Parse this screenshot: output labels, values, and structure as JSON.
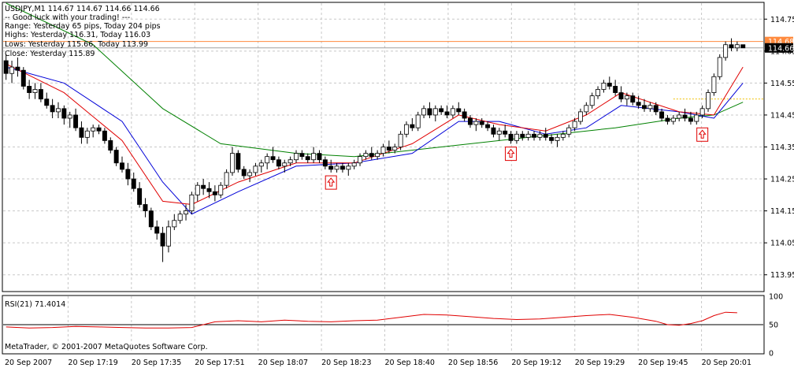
{
  "window": {
    "symbol_line": "USDJPY,M1  114.67 114.67 114.66 114.66",
    "info_lines": [
      "-- Good luck with your trading! ---",
      "Range: Yesterday 65 pips, Today 204 pips",
      "Highs: Yesterday 116.31, Today 116.03",
      "Lows:  Yesterday 115.66, Today 113.99",
      "Close: Yesterday 115.89"
    ],
    "copyright": "MetaTrader, © 2001-2007 MetaQuotes Software Corp."
  },
  "chart_data": [
    {
      "type": "candlestick",
      "title": "USDJPY,M1",
      "ylim": [
        113.9,
        114.8
      ],
      "y_ticks": [
        "114.75",
        "114.65",
        "114.55",
        "114.45",
        "114.35",
        "114.25",
        "114.15",
        "114.05",
        "113.95"
      ],
      "x_tick_labels": [
        "20 Sep 2007",
        "20 Sep 17:19",
        "20 Sep 17:35",
        "20 Sep 17:51",
        "20 Sep 18:07",
        "20 Sep 18:23",
        "20 Sep 18:40",
        "20 Sep 18:56",
        "20 Sep 19:12",
        "20 Sep 19:29",
        "20 Sep 19:45",
        "20 Sep 20:01"
      ],
      "price_labels": {
        "ask": "114.68",
        "bid": "114.66"
      },
      "colors": {
        "ask_line": "#ff8a3d",
        "bid_line": "#a0a0a0",
        "ma_fast": "#e00000",
        "ma_mid": "#0000d8",
        "ma_slow": "#008000",
        "signal": "#e00000",
        "level": "#f0c000"
      },
      "level_line": 114.5,
      "candles": [
        [
          114.62,
          114.64,
          114.56,
          114.58
        ],
        [
          114.58,
          114.62,
          114.55,
          114.6
        ],
        [
          114.6,
          114.63,
          114.57,
          114.59
        ],
        [
          114.59,
          114.6,
          114.53,
          114.54
        ],
        [
          114.54,
          114.56,
          114.5,
          114.52
        ],
        [
          114.52,
          114.55,
          114.5,
          114.53
        ],
        [
          114.53,
          114.55,
          114.49,
          114.5
        ],
        [
          114.5,
          114.52,
          114.47,
          114.48
        ],
        [
          114.48,
          114.5,
          114.44,
          114.46
        ],
        [
          114.46,
          114.49,
          114.44,
          114.47
        ],
        [
          114.47,
          114.48,
          114.42,
          114.44
        ],
        [
          114.44,
          114.46,
          114.41,
          114.45
        ],
        [
          114.45,
          114.47,
          114.4,
          114.41
        ],
        [
          114.41,
          114.43,
          114.36,
          114.38
        ],
        [
          114.38,
          114.41,
          114.36,
          114.4
        ],
        [
          114.4,
          114.42,
          114.38,
          114.41
        ],
        [
          114.41,
          114.42,
          114.39,
          114.4
        ],
        [
          114.4,
          114.41,
          114.36,
          114.37
        ],
        [
          114.37,
          114.38,
          114.33,
          114.34
        ],
        [
          114.34,
          114.35,
          114.29,
          114.3
        ],
        [
          114.3,
          114.32,
          114.27,
          114.28
        ],
        [
          114.28,
          114.3,
          114.23,
          114.25
        ],
        [
          114.25,
          114.27,
          114.21,
          114.22
        ],
        [
          114.22,
          114.24,
          114.16,
          114.17
        ],
        [
          114.17,
          114.19,
          114.13,
          114.15
        ],
        [
          114.15,
          114.16,
          114.09,
          114.1
        ],
        [
          114.1,
          114.12,
          114.06,
          114.08
        ],
        [
          114.08,
          114.1,
          113.99,
          114.04
        ],
        [
          114.04,
          114.12,
          114.02,
          114.1
        ],
        [
          114.1,
          114.14,
          114.09,
          114.12
        ],
        [
          114.12,
          114.15,
          114.11,
          114.14
        ],
        [
          114.14,
          114.17,
          114.12,
          114.15
        ],
        [
          114.15,
          114.21,
          114.14,
          114.2
        ],
        [
          114.2,
          114.24,
          114.18,
          114.23
        ],
        [
          114.23,
          114.25,
          114.2,
          114.22
        ],
        [
          114.22,
          114.24,
          114.19,
          114.21
        ],
        [
          114.21,
          114.23,
          114.18,
          114.2
        ],
        [
          114.2,
          114.24,
          114.19,
          114.23
        ],
        [
          114.23,
          114.28,
          114.22,
          114.27
        ],
        [
          114.27,
          114.35,
          114.26,
          114.33
        ],
        [
          114.33,
          114.34,
          114.27,
          114.28
        ],
        [
          114.28,
          114.29,
          114.25,
          114.26
        ],
        [
          114.26,
          114.28,
          114.24,
          114.27
        ],
        [
          114.27,
          114.3,
          114.26,
          114.29
        ],
        [
          114.29,
          114.31,
          114.27,
          114.3
        ],
        [
          114.3,
          114.33,
          114.28,
          114.32
        ],
        [
          114.32,
          114.35,
          114.3,
          114.31
        ],
        [
          114.31,
          114.32,
          114.28,
          114.29
        ],
        [
          114.29,
          114.31,
          114.27,
          114.3
        ],
        [
          114.3,
          114.32,
          114.29,
          114.31
        ],
        [
          114.31,
          114.34,
          114.3,
          114.33
        ],
        [
          114.33,
          114.34,
          114.31,
          114.32
        ],
        [
          114.32,
          114.33,
          114.3,
          114.31
        ],
        [
          114.31,
          114.35,
          114.3,
          114.33
        ],
        [
          114.33,
          114.34,
          114.3,
          114.31
        ],
        [
          114.31,
          114.32,
          114.28,
          114.29
        ],
        [
          114.29,
          114.31,
          114.27,
          114.28
        ],
        [
          114.28,
          114.3,
          114.27,
          114.29
        ],
        [
          114.29,
          114.3,
          114.27,
          114.28
        ],
        [
          114.28,
          114.3,
          114.26,
          114.29
        ],
        [
          114.29,
          114.31,
          114.28,
          114.3
        ],
        [
          114.3,
          114.33,
          114.29,
          114.32
        ],
        [
          114.32,
          114.34,
          114.31,
          114.33
        ],
        [
          114.33,
          114.35,
          114.31,
          114.32
        ],
        [
          114.32,
          114.34,
          114.31,
          114.33
        ],
        [
          114.33,
          114.36,
          114.32,
          114.35
        ],
        [
          114.35,
          114.37,
          114.33,
          114.34
        ],
        [
          114.34,
          114.36,
          114.33,
          114.35
        ],
        [
          114.35,
          114.4,
          114.34,
          114.39
        ],
        [
          114.39,
          114.43,
          114.38,
          114.42
        ],
        [
          114.42,
          114.44,
          114.4,
          114.41
        ],
        [
          114.41,
          114.46,
          114.4,
          114.45
        ],
        [
          114.45,
          114.48,
          114.44,
          114.47
        ],
        [
          114.47,
          114.49,
          114.44,
          114.45
        ],
        [
          114.45,
          114.48,
          114.43,
          114.47
        ],
        [
          114.47,
          114.48,
          114.45,
          114.46
        ],
        [
          114.46,
          114.48,
          114.44,
          114.45
        ],
        [
          114.45,
          114.48,
          114.44,
          114.47
        ],
        [
          114.47,
          114.49,
          114.45,
          114.46
        ],
        [
          114.46,
          114.47,
          114.43,
          114.44
        ],
        [
          114.44,
          114.45,
          114.41,
          114.42
        ],
        [
          114.42,
          114.44,
          114.4,
          114.43
        ],
        [
          114.43,
          114.44,
          114.41,
          114.42
        ],
        [
          114.42,
          114.43,
          114.4,
          114.41
        ],
        [
          114.41,
          114.42,
          114.38,
          114.39
        ],
        [
          114.39,
          114.41,
          114.37,
          114.4
        ],
        [
          114.4,
          114.42,
          114.38,
          114.39
        ],
        [
          114.39,
          114.4,
          114.36,
          114.37
        ],
        [
          114.37,
          114.4,
          114.36,
          114.39
        ],
        [
          114.39,
          114.4,
          114.37,
          114.38
        ],
        [
          114.38,
          114.4,
          114.37,
          114.39
        ],
        [
          114.39,
          114.4,
          114.37,
          114.38
        ],
        [
          114.38,
          114.4,
          114.37,
          114.39
        ],
        [
          114.39,
          114.41,
          114.37,
          114.38
        ],
        [
          114.38,
          114.39,
          114.36,
          114.37
        ],
        [
          114.37,
          114.39,
          114.35,
          114.38
        ],
        [
          114.38,
          114.4,
          114.37,
          114.39
        ],
        [
          114.39,
          114.42,
          114.38,
          114.41
        ],
        [
          114.41,
          114.44,
          114.4,
          114.43
        ],
        [
          114.43,
          114.47,
          114.42,
          114.46
        ],
        [
          114.46,
          114.49,
          114.45,
          114.48
        ],
        [
          114.48,
          114.52,
          114.47,
          114.51
        ],
        [
          114.51,
          114.54,
          114.5,
          114.53
        ],
        [
          114.53,
          114.56,
          114.52,
          114.55
        ],
        [
          114.55,
          114.57,
          114.53,
          114.54
        ],
        [
          114.54,
          114.56,
          114.51,
          114.52
        ],
        [
          114.52,
          114.54,
          114.49,
          114.5
        ],
        [
          114.5,
          114.52,
          114.48,
          114.51
        ],
        [
          114.51,
          114.52,
          114.48,
          114.49
        ],
        [
          114.49,
          114.51,
          114.47,
          114.48
        ],
        [
          114.48,
          114.5,
          114.46,
          114.47
        ],
        [
          114.47,
          114.49,
          114.46,
          114.48
        ],
        [
          114.48,
          114.49,
          114.45,
          114.46
        ],
        [
          114.46,
          114.47,
          114.43,
          114.44
        ],
        [
          114.44,
          114.45,
          114.42,
          114.43
        ],
        [
          114.43,
          114.45,
          114.42,
          114.44
        ],
        [
          114.44,
          114.46,
          114.43,
          114.45
        ],
        [
          114.45,
          114.47,
          114.43,
          114.44
        ],
        [
          114.44,
          114.46,
          114.42,
          114.43
        ],
        [
          114.43,
          114.46,
          114.42,
          114.45
        ],
        [
          114.45,
          114.48,
          114.44,
          114.47
        ],
        [
          114.47,
          114.53,
          114.46,
          114.52
        ],
        [
          114.52,
          114.58,
          114.51,
          114.57
        ],
        [
          114.57,
          114.64,
          114.56,
          114.63
        ],
        [
          114.63,
          114.68,
          114.62,
          114.67
        ],
        [
          114.67,
          114.69,
          114.65,
          114.66
        ],
        [
          114.66,
          114.68,
          114.65,
          114.67
        ],
        [
          114.67,
          114.67,
          114.66,
          114.66
        ]
      ],
      "ma_fast": [
        [
          0,
          114.61
        ],
        [
          10,
          114.52
        ],
        [
          20,
          114.37
        ],
        [
          27,
          114.18
        ],
        [
          32,
          114.17
        ],
        [
          40,
          114.24
        ],
        [
          50,
          114.3
        ],
        [
          60,
          114.3
        ],
        [
          70,
          114.36
        ],
        [
          78,
          114.45
        ],
        [
          85,
          114.42
        ],
        [
          93,
          114.4
        ],
        [
          100,
          114.45
        ],
        [
          106,
          114.52
        ],
        [
          116,
          114.46
        ],
        [
          122,
          114.45
        ],
        [
          127,
          114.6
        ]
      ],
      "ma_mid": [
        [
          0,
          114.6
        ],
        [
          10,
          114.55
        ],
        [
          20,
          114.43
        ],
        [
          27,
          114.24
        ],
        [
          32,
          114.14
        ],
        [
          40,
          114.21
        ],
        [
          50,
          114.29
        ],
        [
          60,
          114.3
        ],
        [
          70,
          114.33
        ],
        [
          78,
          114.43
        ],
        [
          85,
          114.43
        ],
        [
          93,
          114.39
        ],
        [
          100,
          114.41
        ],
        [
          106,
          114.48
        ],
        [
          116,
          114.46
        ],
        [
          122,
          114.44
        ],
        [
          127,
          114.55
        ]
      ],
      "ma_slow": [
        [
          0,
          114.8
        ],
        [
          15,
          114.67
        ],
        [
          27,
          114.47
        ],
        [
          37,
          114.36
        ],
        [
          50,
          114.33
        ],
        [
          60,
          114.32
        ],
        [
          75,
          114.35
        ],
        [
          90,
          114.38
        ],
        [
          105,
          114.41
        ],
        [
          116,
          114.44
        ],
        [
          122,
          114.45
        ],
        [
          127,
          114.49
        ]
      ],
      "buy_signals": [
        [
          56,
          114.24
        ],
        [
          87,
          114.33
        ],
        [
          120,
          114.39
        ]
      ]
    },
    {
      "type": "line",
      "title": "RSI(21) 71.4014",
      "ylim": [
        0,
        100
      ],
      "y_ticks": [
        "100",
        "50",
        "0"
      ],
      "level_line": 50,
      "series": [
        {
          "values": [
            [
              0,
              46
            ],
            [
              4,
              44
            ],
            [
              8,
              45
            ],
            [
              12,
              47
            ],
            [
              16,
              46
            ],
            [
              20,
              45
            ],
            [
              24,
              44
            ],
            [
              28,
              44
            ],
            [
              32,
              45
            ],
            [
              36,
              55
            ],
            [
              40,
              57
            ],
            [
              44,
              55
            ],
            [
              48,
              58
            ],
            [
              52,
              56
            ],
            [
              56,
              55
            ],
            [
              60,
              57
            ],
            [
              64,
              58
            ],
            [
              68,
              63
            ],
            [
              72,
              68
            ],
            [
              76,
              67
            ],
            [
              80,
              64
            ],
            [
              84,
              61
            ],
            [
              88,
              59
            ],
            [
              92,
              60
            ],
            [
              96,
              63
            ],
            [
              100,
              66
            ],
            [
              104,
              68
            ],
            [
              108,
              63
            ],
            [
              112,
              56
            ],
            [
              114,
              50
            ],
            [
              116,
              49
            ],
            [
              118,
              52
            ],
            [
              120,
              57
            ],
            [
              122,
              66
            ],
            [
              124,
              72
            ],
            [
              126,
              71
            ]
          ]
        }
      ]
    }
  ]
}
